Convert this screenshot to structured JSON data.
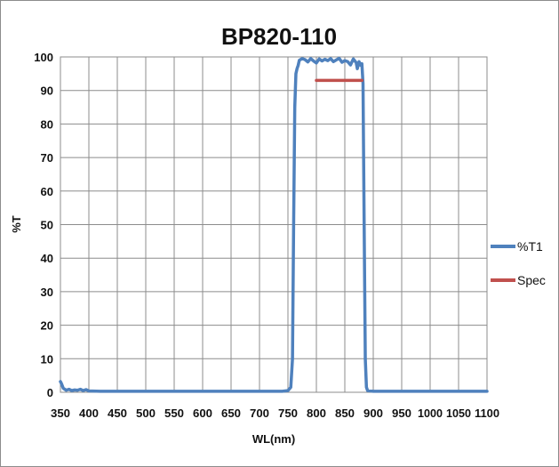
{
  "chart_data": {
    "type": "line",
    "title": "BP820-110",
    "xlabel": "WL(nm)",
    "ylabel": "%T",
    "xlim": [
      350,
      1100
    ],
    "ylim": [
      0,
      100
    ],
    "xticks": [
      "350",
      "400",
      "450",
      "500",
      "550",
      "600",
      "650",
      "700",
      "750",
      "800",
      "850",
      "900",
      "950",
      "1000",
      "1050",
      "1100"
    ],
    "yticks": [
      "0",
      "10",
      "20",
      "30",
      "40",
      "50",
      "60",
      "70",
      "80",
      "90",
      "100"
    ],
    "grid": true,
    "legend_position": "right",
    "series": [
      {
        "name": "%T1",
        "color": "#4f81bd",
        "x": [
          350,
          352,
          355,
          360,
          365,
          370,
          375,
          380,
          385,
          390,
          395,
          400,
          420,
          450,
          500,
          600,
          700,
          740,
          750,
          755,
          758,
          760,
          762,
          764,
          766,
          768,
          770,
          775,
          780,
          785,
          790,
          795,
          800,
          805,
          810,
          815,
          820,
          825,
          830,
          835,
          840,
          845,
          850,
          855,
          860,
          865,
          870,
          872,
          875,
          878,
          880,
          882,
          884,
          886,
          888,
          890,
          900,
          950,
          1000,
          1050,
          1100
        ],
        "y": [
          3.2,
          2.5,
          1.2,
          0.6,
          0.9,
          0.5,
          0.7,
          0.6,
          0.9,
          0.5,
          0.8,
          0.4,
          0.3,
          0.3,
          0.3,
          0.3,
          0.3,
          0.3,
          0.5,
          1.5,
          10,
          50,
          85,
          95,
          96.5,
          97.5,
          99,
          99.5,
          99.2,
          98.5,
          99.5,
          98.8,
          98.2,
          99.4,
          98.8,
          99.3,
          98.9,
          99.5,
          98.6,
          99.1,
          99.6,
          98.4,
          98.9,
          98.6,
          97.6,
          99.4,
          98.3,
          96.5,
          98.6,
          97.5,
          98,
          92,
          50,
          10,
          1.5,
          0.5,
          0.3,
          0.3,
          0.3,
          0.3,
          0.3
        ]
      },
      {
        "name": "Spec",
        "color": "#c0504d",
        "x": [
          800,
          880
        ],
        "y": [
          93,
          93
        ]
      }
    ]
  }
}
